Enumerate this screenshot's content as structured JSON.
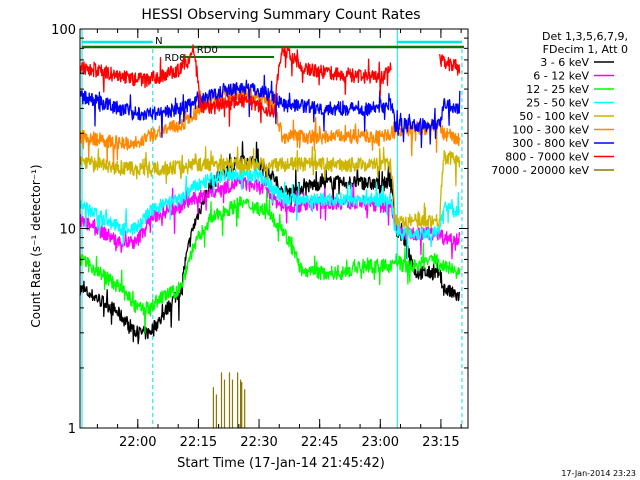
{
  "chart_data": {
    "type": "line",
    "title": "HESSI Observing Summary Count Rates",
    "ylabel": "Count Rate (s⁻¹ detector⁻¹)",
    "xlabel": "Start Time (17-Jan-14 21:45:42)",
    "x_tick_labels": [
      "22:00",
      "22:15",
      "22:30",
      "22:45",
      "23:00",
      "23:15"
    ],
    "y_tick_labels": [
      "1",
      "10",
      "100"
    ],
    "y_scale": "log",
    "ylim": [
      1,
      100
    ],
    "xlim_minutes_after_start": [
      0,
      96
    ],
    "legend_header": [
      "Det 1,3,5,6,7,9,",
      "FDecim 1, Att 0"
    ],
    "legend_position": "right",
    "series": [
      {
        "name": "3 - 6 keV",
        "color": "#000000",
        "x": [
          0,
          8,
          14,
          17,
          20,
          25,
          28,
          32,
          35,
          40,
          45,
          48,
          50,
          55,
          60,
          65,
          70,
          75,
          77,
          78,
          80,
          83,
          87,
          89,
          90,
          94
        ],
        "values": [
          5,
          4,
          3,
          3,
          3.5,
          5,
          10,
          16,
          19,
          22,
          21,
          18,
          15,
          16,
          17,
          17,
          17,
          16.5,
          18,
          10,
          9,
          6,
          6,
          6,
          5,
          4.5
        ]
      },
      {
        "name": "6 - 12 keV",
        "color": "#ff00ff",
        "x": [
          0,
          10,
          14,
          17,
          20,
          25,
          28,
          32,
          35,
          40,
          45,
          48,
          50,
          55,
          60,
          65,
          70,
          75,
          77,
          78,
          80,
          83,
          87,
          89,
          90,
          94
        ],
        "values": [
          11,
          8.5,
          8.5,
          11,
          12,
          13,
          14,
          15,
          16,
          17,
          16,
          14,
          13,
          13,
          13.5,
          13.5,
          13.5,
          13,
          13.5,
          10,
          9.5,
          9.5,
          9.5,
          9.5,
          9,
          9
        ]
      },
      {
        "name": "12 - 25 keV",
        "color": "#00ff00",
        "x": [
          0,
          10,
          14,
          17,
          20,
          25,
          28,
          32,
          35,
          40,
          45,
          48,
          50,
          55,
          60,
          65,
          70,
          75,
          77,
          78,
          80,
          83,
          87,
          89,
          90,
          94
        ],
        "values": [
          7,
          5,
          4,
          4,
          4.5,
          5,
          8,
          11,
          12,
          13.5,
          12.5,
          11,
          10,
          6,
          6,
          6,
          6.5,
          6.5,
          6.5,
          7,
          6.5,
          6.5,
          7,
          7,
          6.5,
          6
        ]
      },
      {
        "name": "25 - 50 keV",
        "color": "#00ffff",
        "x": [
          0,
          10,
          14,
          17,
          20,
          25,
          28,
          32,
          35,
          40,
          45,
          48,
          50,
          55,
          60,
          65,
          70,
          75,
          77,
          78,
          80,
          83,
          87,
          89,
          90,
          94
        ],
        "values": [
          13,
          10,
          10,
          12,
          13,
          14,
          16,
          17.5,
          18.5,
          19,
          18,
          16,
          14,
          14,
          14,
          14,
          14,
          14,
          14,
          10,
          9.5,
          9.5,
          9.5,
          9.5,
          13,
          12
        ]
      },
      {
        "name": "50 - 100 keV",
        "color": "#ccb400",
        "x": [
          0,
          10,
          14,
          17,
          20,
          25,
          28,
          32,
          35,
          40,
          45,
          48,
          50,
          55,
          60,
          65,
          70,
          75,
          77,
          78,
          80,
          83,
          87,
          89,
          90,
          94
        ],
        "values": [
          22,
          20,
          20,
          20,
          20,
          20.5,
          21,
          21,
          21,
          21,
          21,
          21,
          21,
          21,
          21,
          21,
          21,
          21,
          21,
          11,
          11,
          11,
          11,
          11,
          23,
          22
        ]
      },
      {
        "name": "100 - 300 keV",
        "color": "#ff8800",
        "x": [
          0,
          10,
          14,
          17,
          20,
          25,
          28,
          32,
          35,
          40,
          45,
          48,
          50,
          55,
          60,
          65,
          70,
          75,
          77,
          78,
          80,
          83,
          87,
          89,
          90,
          94
        ],
        "values": [
          29,
          27,
          27,
          29,
          31,
          33,
          37,
          43,
          47,
          48,
          45,
          41,
          29,
          29,
          29,
          29,
          29,
          29,
          30,
          31,
          31,
          32,
          32,
          32,
          30,
          28
        ]
      },
      {
        "name": "300 - 800 keV",
        "color": "#0000ff",
        "x": [
          0,
          10,
          14,
          17,
          20,
          25,
          28,
          32,
          35,
          40,
          45,
          48,
          50,
          55,
          60,
          65,
          70,
          75,
          77,
          78,
          80,
          83,
          87,
          89,
          90,
          94
        ],
        "values": [
          46,
          40,
          38,
          38,
          38,
          40,
          42,
          46,
          49,
          51,
          49,
          46,
          42,
          41,
          40,
          40,
          40,
          40,
          42,
          33,
          33,
          33,
          33,
          33,
          43,
          40
        ]
      },
      {
        "name": "800 - 7000 keV",
        "color": "#ff0000",
        "x": [
          0,
          10,
          14,
          17,
          20,
          25,
          27,
          28,
          30,
          35,
          40,
          45,
          48,
          50,
          55,
          60,
          65,
          70,
          75,
          77
        ],
        "values": [
          65,
          58,
          56,
          56,
          58,
          63,
          70,
          78,
          40,
          42,
          44,
          41,
          38,
          80,
          65,
          61,
          59,
          58,
          57,
          65
        ]
      },
      {
        "name": "800 - 7000 keV (after gap)",
        "color": "#ff0000",
        "x": [
          89,
          90,
          94
        ],
        "values": [
          70,
          68,
          65
        ]
      },
      {
        "name": "7000 - 20000 keV",
        "color": "#887700",
        "x": [
          33,
          35,
          37,
          39,
          40
        ],
        "values": [
          1.6,
          1.9,
          1.9,
          1.9,
          1.7
        ]
      }
    ],
    "annotations": [
      {
        "text": "N",
        "color": "#00e5e5"
      },
      {
        "text": "RD0",
        "color": "#007700"
      },
      {
        "text": "RD0",
        "color": "#007700"
      }
    ],
    "timestamp": "17-Jan-2014 23:23"
  }
}
